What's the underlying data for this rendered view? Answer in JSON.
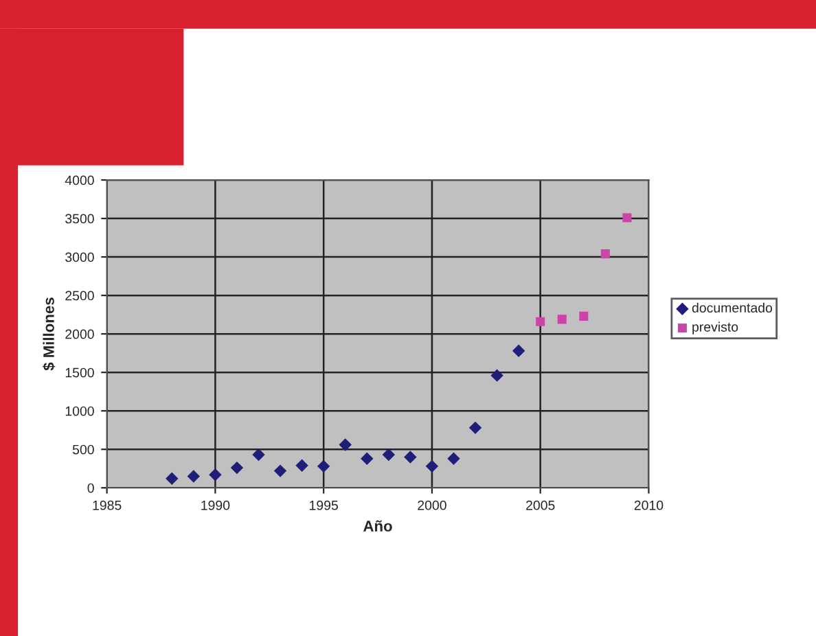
{
  "chart_data": {
    "type": "scatter",
    "xlabel": "Año",
    "ylabel": "$ Millones",
    "xlim": [
      1985,
      2010
    ],
    "xticks": [
      1985,
      1990,
      1995,
      2000,
      2005,
      2010
    ],
    "ylim": [
      0,
      4000
    ],
    "yticks": [
      0,
      500,
      1000,
      1500,
      2000,
      2500,
      3000,
      3500,
      4000
    ],
    "grid": true,
    "legend": "right",
    "series": [
      {
        "name": "documentado",
        "color": "#1f1f7a",
        "marker": "diamond",
        "x": [
          1988,
          1989,
          1990,
          1991,
          1992,
          1993,
          1994,
          1995,
          1996,
          1997,
          1998,
          1999,
          2000,
          2001,
          2002,
          2003,
          2004
        ],
        "values": [
          120,
          150,
          170,
          260,
          430,
          220,
          290,
          280,
          560,
          380,
          430,
          400,
          280,
          380,
          780,
          1460,
          1780
        ]
      },
      {
        "name": "previsto",
        "color": "#cc44aa",
        "marker": "square",
        "x": [
          2005,
          2006,
          2007,
          2008,
          2009
        ],
        "values": [
          2160,
          2190,
          2230,
          3040,
          3510
        ]
      }
    ]
  }
}
